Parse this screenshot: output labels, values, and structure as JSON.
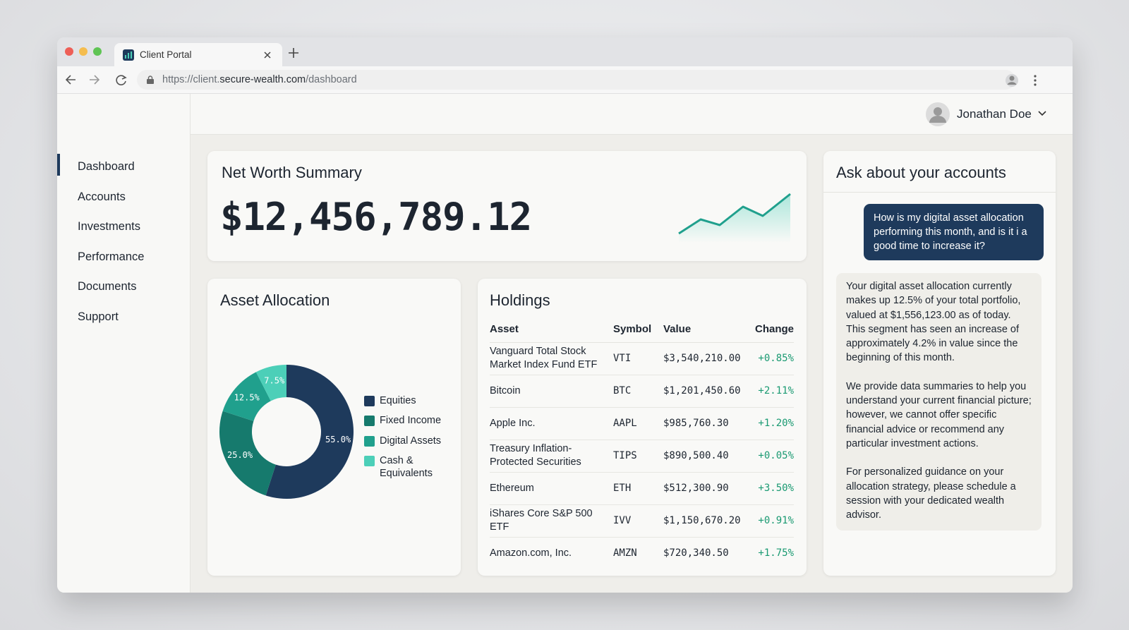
{
  "browser": {
    "tab_title": "Client Portal",
    "url_scheme": "https://client.",
    "url_domain": "secure-wealth.com",
    "url_path": "/dashboard"
  },
  "user": {
    "name": "Jonathan Doe"
  },
  "nav": [
    "Dashboard",
    "Accounts",
    "Investments",
    "Performance",
    "Documents",
    "Support"
  ],
  "net_worth": {
    "title": "Net Worth Summary",
    "value": "$12,456,789.12"
  },
  "allocation": {
    "title": "Asset Allocation",
    "type": "pie",
    "categories": [
      "Equities",
      "Fixed Income",
      "Digital Assets",
      "Cash & Equivalents"
    ],
    "values": [
      55,
      25,
      12.5,
      7.5
    ],
    "value_labels": [
      "55.0%",
      "25.0%",
      "12.5%",
      "7.5%"
    ],
    "colors": [
      "#1e3a5c",
      "#167a6d",
      "#20a08d",
      "#4ccfb8"
    ]
  },
  "holdings": {
    "title": "Holdings",
    "columns": [
      "Asset",
      "Symbol",
      "Value",
      "Change"
    ],
    "rows": [
      [
        "Vanguard Total Stock Market Index Fund ETF",
        "VTI",
        "$3,540,210.00",
        "+0.85%"
      ],
      [
        "Bitcoin",
        "BTC",
        "$1,201,450.60",
        "+2.11%"
      ],
      [
        "Apple Inc.",
        "AAPL",
        "$985,760.30",
        "+1.20%"
      ],
      [
        "Treasury Inflation-Protected Securities",
        "TIPS",
        "$890,500.40",
        "+0.05%"
      ],
      [
        "Ethereum",
        "ETH",
        "$512,300.90",
        "+3.50%"
      ],
      [
        "iShares Core S&P 500 ETF",
        "IVV",
        "$1,150,670.20",
        "+0.91%"
      ],
      [
        "Amazon.com, Inc.",
        "AMZN",
        "$720,340.50",
        "+1.75%"
      ]
    ]
  },
  "chat": {
    "title": "Ask about your accounts",
    "question": "How is my digital asset allocation performing this month, and is it i a good time to increase it?",
    "answer": [
      "Your digital asset allocation currently makes up 12.5% of your total portfolio, valued at $1,556,123.00 as of today. This segment has seen an increase of approximately 4.2% in value since the beginning of this month.",
      "We provide data summaries to help you understand your current financial picture; however, we cannot offer specific financial advice or recommend any particular investment actions.",
      "For personalized guidance on your allocation strategy, please schedule a session with your dedicated wealth advisor."
    ]
  }
}
